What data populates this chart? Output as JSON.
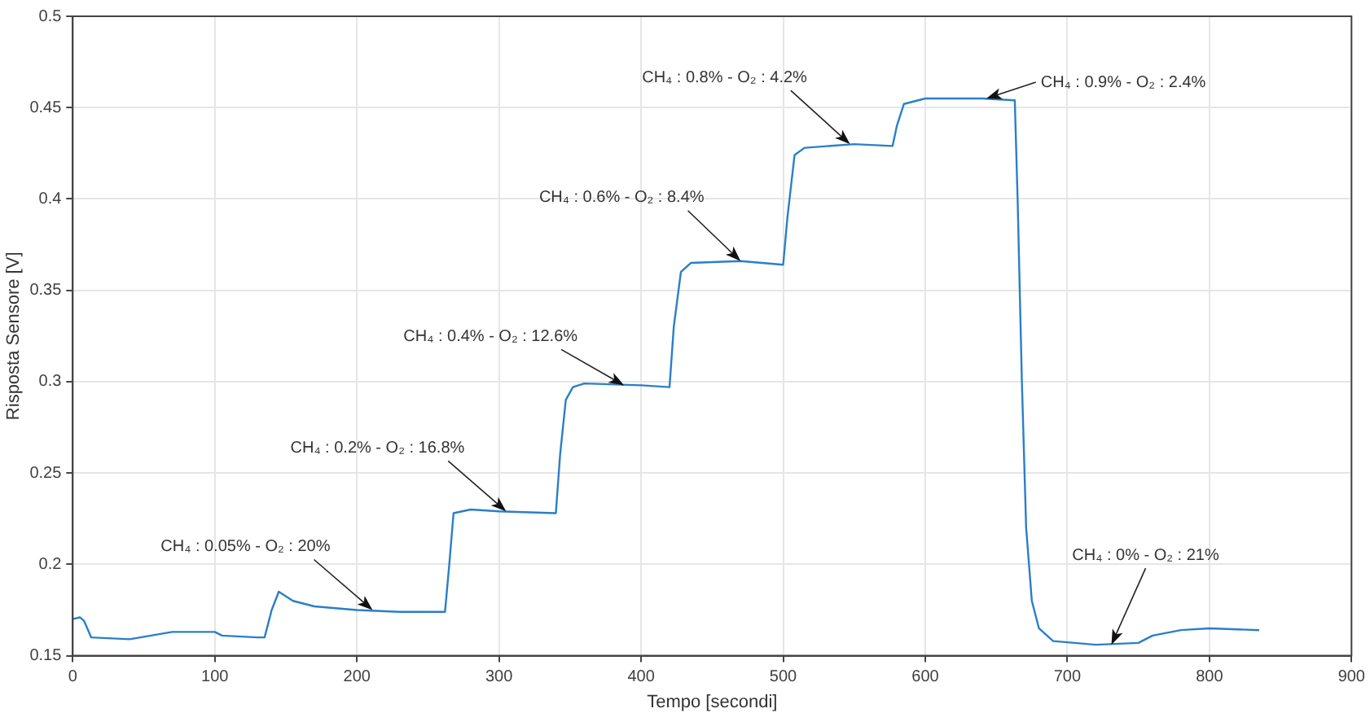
{
  "chart_data": {
    "type": "line",
    "xlabel": "Tempo [secondi]",
    "ylabel": "Risposta Sensore [V]",
    "xlim": [
      0,
      900
    ],
    "xticks": [
      0,
      100,
      200,
      300,
      400,
      500,
      600,
      700,
      800,
      900
    ],
    "ylim": [
      0.15,
      0.5
    ],
    "yticks": [
      0.15,
      0.2,
      0.25,
      0.3,
      0.35,
      0.4,
      0.45,
      0.5
    ],
    "grid": true,
    "legend": false,
    "marker": "none",
    "line_style": "solid",
    "series": [
      {
        "color": "#2a7fc8",
        "x": [
          0,
          5,
          8,
          13,
          40,
          70,
          100,
          105,
          130,
          135,
          140,
          145,
          155,
          170,
          200,
          230,
          262,
          265,
          268,
          280,
          300,
          340,
          343,
          347,
          352,
          360,
          400,
          420,
          423,
          428,
          435,
          470,
          500,
          503,
          508,
          515,
          550,
          577,
          580,
          585,
          600,
          640,
          663,
          665,
          668,
          671,
          675,
          680,
          690,
          720,
          750,
          760,
          780,
          800,
          835
        ],
        "values": [
          0.17,
          0.171,
          0.169,
          0.16,
          0.159,
          0.163,
          0.163,
          0.161,
          0.16,
          0.16,
          0.175,
          0.185,
          0.18,
          0.177,
          0.175,
          0.174,
          0.174,
          0.2,
          0.228,
          0.23,
          0.229,
          0.228,
          0.26,
          0.29,
          0.297,
          0.299,
          0.298,
          0.297,
          0.33,
          0.36,
          0.365,
          0.366,
          0.364,
          0.39,
          0.424,
          0.428,
          0.43,
          0.429,
          0.44,
          0.452,
          0.455,
          0.455,
          0.454,
          0.4,
          0.3,
          0.22,
          0.18,
          0.165,
          0.158,
          0.156,
          0.157,
          0.161,
          0.164,
          0.165,
          0.164
        ]
      }
    ],
    "annotations": [
      {
        "text": "CH₄ : 0.05% - O₂ : 20%",
        "x": 211,
        "y": 0.175
      },
      {
        "text": "CH₄ : 0.2% - O₂ : 16.8%",
        "x": 305,
        "y": 0.229
      },
      {
        "text": "CH₄ : 0.4% - O₂ : 12.6%",
        "x": 388,
        "y": 0.298
      },
      {
        "text": "CH₄ : 0.6% - O₂ : 8.4%",
        "x": 470,
        "y": 0.366
      },
      {
        "text": "CH₄ : 0.8% - O₂ : 4.2%",
        "x": 547,
        "y": 0.43
      },
      {
        "text": "CH₄ : 0.9% - O₂ : 2.4%",
        "x": 643,
        "y": 0.455
      },
      {
        "text": "CH₄ : 0% - O₂ : 21%",
        "x": 731,
        "y": 0.156
      }
    ]
  }
}
